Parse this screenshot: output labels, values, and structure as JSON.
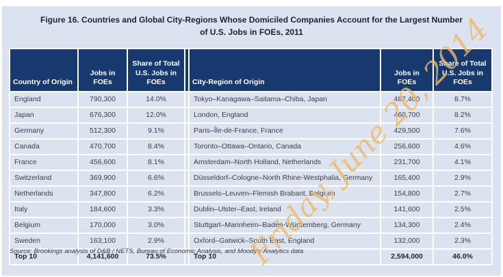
{
  "title": {
    "line1": "Figure 16. Countries and Global City-Regions Whose Domiciled Companies Account for the Largest Number",
    "line2": "of U.S. Jobs in FOEs, 2011"
  },
  "columns": {
    "country": "Country of Origin",
    "jobs_left": "Jobs in\nFOEs",
    "share_left": "Share of Total\nU.S. Jobs in\nFOEs",
    "city": "City-Region of Origin",
    "jobs_right": "Jobs in\nFOEs",
    "share_right": "Share of Total\nU.S. Jobs in\nFOEs"
  },
  "rows": [
    {
      "country": "England",
      "country_jobs": "790,300",
      "country_share": "14.0%",
      "city": "Tokyo–Kanagawa–Saitama–Chiba, Japan",
      "city_jobs": "487,400",
      "city_share": "8.7%"
    },
    {
      "country": "Japan",
      "country_jobs": "676,300",
      "country_share": "12.0%",
      "city": "London, England",
      "city_jobs": "460,700",
      "city_share": "8.2%"
    },
    {
      "country": "Germany",
      "country_jobs": "512,300",
      "country_share": "9.1%",
      "city": "Paris–Île-de-France, France",
      "city_jobs": "429,500",
      "city_share": "7.6%"
    },
    {
      "country": "Canada",
      "country_jobs": "470,700",
      "country_share": "8.4%",
      "city": "Toronto–Ottawa–Ontario, Canada",
      "city_jobs": "256,600",
      "city_share": "4.6%"
    },
    {
      "country": "France",
      "country_jobs": "456,600",
      "country_share": "8.1%",
      "city": "Amsterdam–North Holland, Netherlands",
      "city_jobs": "231,700",
      "city_share": "4.1%"
    },
    {
      "country": "Switzerland",
      "country_jobs": "369,900",
      "country_share": "6.6%",
      "city": "Düsseldorf–Cologne–North Rhine-Westphalia, Germany",
      "city_jobs": "165,400",
      "city_share": "2.9%"
    },
    {
      "country": "Netherlands",
      "country_jobs": "347,800",
      "country_share": "6.2%",
      "city": "Brussels–Leuven–Flemish Brabant, Belgium",
      "city_jobs": "154,800",
      "city_share": "2.7%"
    },
    {
      "country": "Italy",
      "country_jobs": "184,600",
      "country_share": "3.3%",
      "city": "Dublin–Ulster–East, Ireland",
      "city_jobs": "141,600",
      "city_share": "2.5%"
    },
    {
      "country": "Belgium",
      "country_jobs": "170,000",
      "country_share": "3.0%",
      "city": "Stuttgart–Mannheim–Baden-Württemberg, Germany",
      "city_jobs": "134,300",
      "city_share": "2.4%"
    },
    {
      "country": "Sweden",
      "country_jobs": "163,100",
      "country_share": "2.9%",
      "city": "Oxford–Gatwick–South East, England",
      "city_jobs": "132,000",
      "city_share": "2.3%"
    }
  ],
  "totals": {
    "label_left": "Top 10",
    "country_jobs": "4,141,600",
    "country_share": "73.5%",
    "label_right": "Top 10",
    "city_jobs": "2,594,000",
    "city_share": "46.0%"
  },
  "source": "Source: Brookings analysis of D&B / NETS, Bureau of Economic Analysis, and Moody's Analytics data",
  "watermark": "Friday, June 20, 2014",
  "colors": {
    "header_bg": "#17396f",
    "panel_bg": "#dce3f0",
    "watermark": "#eeb96b",
    "total_rule": "#1f1f1f"
  }
}
